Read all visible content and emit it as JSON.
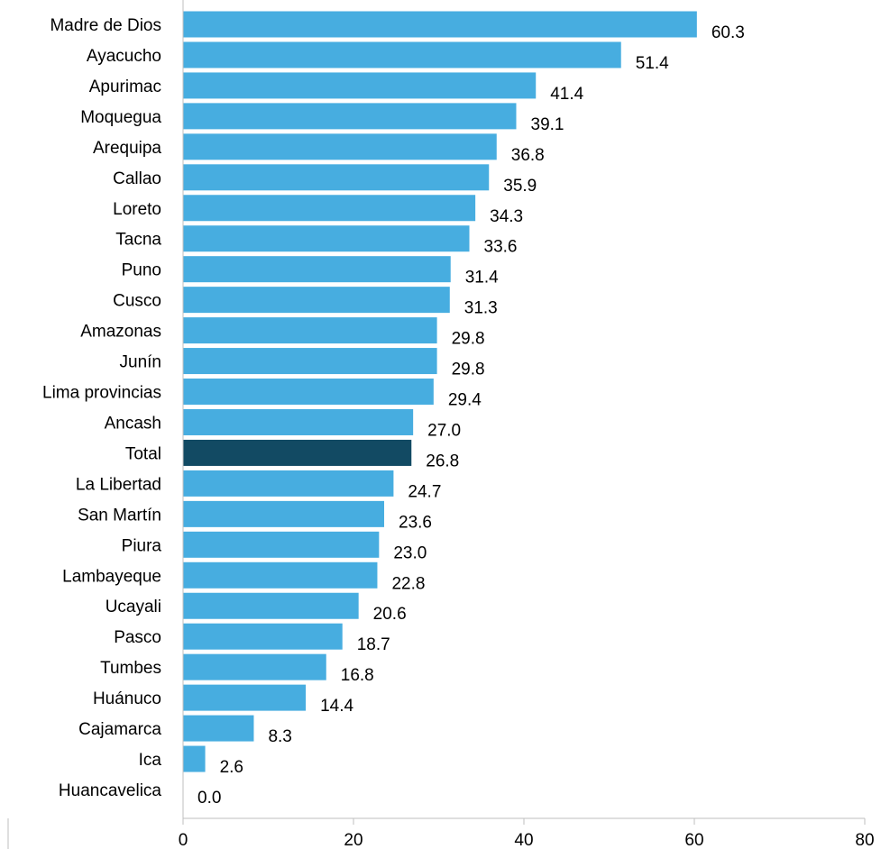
{
  "chart_data": {
    "type": "bar",
    "orientation": "horizontal",
    "title": "",
    "xlabel": "",
    "ylabel": "",
    "xlim": [
      0,
      80
    ],
    "xticks": [
      0,
      20,
      40,
      60,
      80
    ],
    "grid": false,
    "legend": "none",
    "colors": {
      "bar": "#47ADE0",
      "highlight": "#124A63",
      "axis": "#BFBFBF"
    },
    "highlight_category": "Total",
    "categories": [
      "Madre de Dios",
      "Ayacucho",
      "Apurimac",
      "Moquegua",
      "Arequipa",
      "Callao",
      "Loreto",
      "Tacna",
      "Puno",
      "Cusco",
      "Amazonas",
      "Junín",
      "Lima provincias",
      "Ancash",
      "Total",
      "La Libertad",
      "San Martín",
      "Piura",
      "Lambayeque",
      "Ucayali",
      "Pasco",
      "Tumbes",
      "Huánuco",
      "Cajamarca",
      "Ica",
      "Huancavelica"
    ],
    "values": [
      60.3,
      51.4,
      41.4,
      39.1,
      36.8,
      35.9,
      34.3,
      33.6,
      31.4,
      31.3,
      29.8,
      29.8,
      29.4,
      27.0,
      26.8,
      24.7,
      23.6,
      23.0,
      22.8,
      20.6,
      18.7,
      16.8,
      14.4,
      8.3,
      2.6,
      0.0
    ],
    "value_labels": [
      "60.3",
      "51.4",
      "41.4",
      "39.1",
      "36.8",
      "35.9",
      "34.3",
      "33.6",
      "31.4",
      "31.3",
      "29.8",
      "29.8",
      "29.4",
      "27.0",
      "26.8",
      "24.7",
      "23.6",
      "23.0",
      "22.8",
      "20.6",
      "18.7",
      "16.8",
      "14.4",
      "8.3",
      "2.6",
      "0.0"
    ],
    "tick_labels": [
      "0",
      "20",
      "40",
      "60",
      "80"
    ]
  }
}
